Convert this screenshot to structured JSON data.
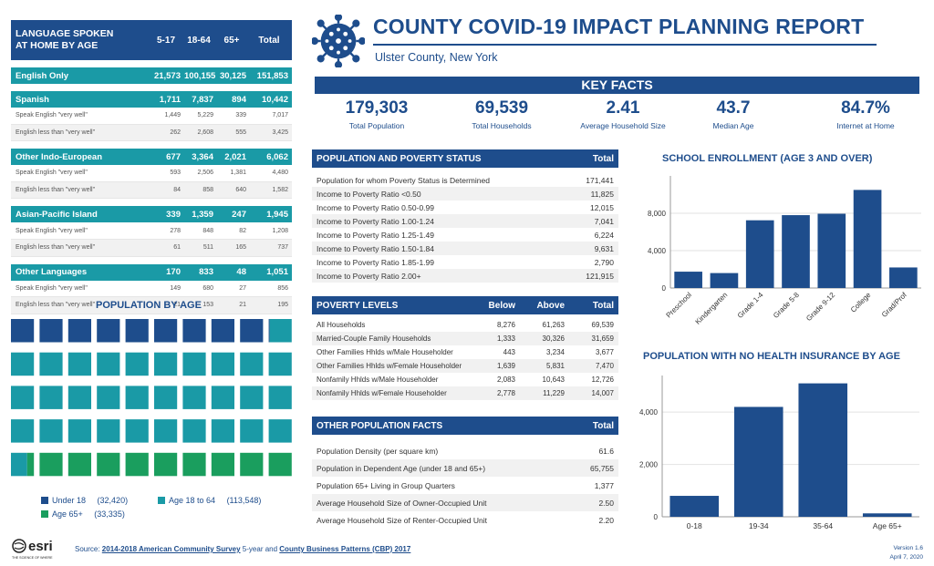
{
  "language": {
    "header": {
      "label_line1": "LANGUAGE SPOKEN",
      "label_line2": "AT HOME BY AGE",
      "col1": "5-17",
      "col2": "18-64",
      "col3": "65+",
      "col4": "Total"
    },
    "english_only": {
      "label": "English Only",
      "v1": "21,573",
      "v2": "100,155",
      "v3": "30,125",
      "v4": "151,853"
    },
    "groups": [
      {
        "label": "Spanish",
        "v1": "1,711",
        "v2": "7,837",
        "v3": "894",
        "v4": "10,442",
        "subs": [
          {
            "label": "Speak English \"very well\"",
            "v1": "1,449",
            "v2": "5,229",
            "v3": "339",
            "v4": "7,017"
          },
          {
            "label": "English less than \"very well\"",
            "v1": "262",
            "v2": "2,608",
            "v3": "555",
            "v4": "3,425"
          }
        ]
      },
      {
        "label": "Other Indo-European",
        "v1": "677",
        "v2": "3,364",
        "v3": "2,021",
        "v4": "6,062",
        "subs": [
          {
            "label": "Speak English \"very well\"",
            "v1": "593",
            "v2": "2,506",
            "v3": "1,381",
            "v4": "4,480"
          },
          {
            "label": "English less than \"very well\"",
            "v1": "84",
            "v2": "858",
            "v3": "640",
            "v4": "1,582"
          }
        ]
      },
      {
        "label": "Asian-Pacific Island",
        "v1": "339",
        "v2": "1,359",
        "v3": "247",
        "v4": "1,945",
        "subs": [
          {
            "label": "Speak English \"very well\"",
            "v1": "278",
            "v2": "848",
            "v3": "82",
            "v4": "1,208"
          },
          {
            "label": "English less than \"very well\"",
            "v1": "61",
            "v2": "511",
            "v3": "165",
            "v4": "737"
          }
        ]
      },
      {
        "label": "Other Languages",
        "v1": "170",
        "v2": "833",
        "v3": "48",
        "v4": "1,051",
        "subs": [
          {
            "label": "Speak English \"very well\"",
            "v1": "149",
            "v2": "680",
            "v3": "27",
            "v4": "856"
          },
          {
            "label": "English less than \"very well\"",
            "v1": "21",
            "v2": "153",
            "v3": "21",
            "v4": "195"
          }
        ]
      }
    ]
  },
  "header": {
    "title": "COUNTY COVID-19 IMPACT PLANNING REPORT",
    "subtitle": "Ulster County,  New York"
  },
  "key_facts": {
    "label": "KEY FACTS",
    "items": [
      {
        "value": "179,303",
        "label": "Total Population"
      },
      {
        "value": "69,539",
        "label": "Total Households"
      },
      {
        "value": "2.41",
        "label": "Average Household Size"
      },
      {
        "value": "43.7",
        "label": "Median Age"
      },
      {
        "value": "84.7%",
        "label": "Internet at Home"
      }
    ]
  },
  "poverty_status": {
    "title": "POPULATION AND POVERTY STATUS",
    "col": "Total",
    "rows": [
      {
        "label": "Population for whom Poverty Status is Determined",
        "value": "171,441"
      },
      {
        "label": "Income to Poverty Ratio <0.50",
        "value": "11,825"
      },
      {
        "label": "Income to Poverty Ratio 0.50-0.99",
        "value": "12,015"
      },
      {
        "label": "Income to Poverty Ratio 1.00-1.24",
        "value": "7,041"
      },
      {
        "label": "Income to Poverty Ratio 1.25-1.49",
        "value": "6,224"
      },
      {
        "label": "Income to Poverty Ratio 1.50-1.84",
        "value": "9,631"
      },
      {
        "label": "Income to Poverty Ratio 1.85-1.99",
        "value": "2,790"
      },
      {
        "label": "Income to Poverty Ratio 2.00+",
        "value": "121,915"
      }
    ]
  },
  "poverty_levels": {
    "title": "POVERTY LEVELS",
    "col1": "Below",
    "col2": "Above",
    "col3": "Total",
    "rows": [
      {
        "label": "All Households",
        "below": "8,276",
        "above": "61,263",
        "total": "69,539"
      },
      {
        "label": "Married-Couple Family Households",
        "below": "1,333",
        "above": "30,326",
        "total": "31,659"
      },
      {
        "label": "Other Families Hhlds w/Male Householder",
        "below": "443",
        "above": "3,234",
        "total": "3,677"
      },
      {
        "label": "Other Families Hhlds w/Female Householder",
        "below": "1,639",
        "above": "5,831",
        "total": "7,470"
      },
      {
        "label": "Nonfamily Hhlds w/Male Householder",
        "below": "2,083",
        "above": "10,643",
        "total": "12,726"
      },
      {
        "label": "Nonfamily Hhlds w/Female Householder",
        "below": "2,778",
        "above": "11,229",
        "total": "14,007"
      }
    ]
  },
  "other_facts": {
    "title": "OTHER POPULATION FACTS",
    "col": "Total",
    "rows": [
      {
        "label": "Population Density (per square km)",
        "value": "61.6"
      },
      {
        "label": "Population in Dependent Age (under 18 and 65+)",
        "value": "65,755"
      },
      {
        "label": "Population 65+ Living in Group Quarters",
        "value": "1,377"
      },
      {
        "label": "Average Household Size of Owner-Occupied Unit",
        "value": "2.50"
      },
      {
        "label": "Average Household Size of Renter-Occupied Unit",
        "value": "2.20"
      }
    ]
  },
  "population_by_age": {
    "title": "POPULATION BY AGE",
    "legend": [
      {
        "label": "Under 18",
        "value": "(32,420)",
        "color": "#1e4d8c"
      },
      {
        "label": "Age 18 to 64",
        "value": "(113,548)",
        "color": "#1a9aa6"
      },
      {
        "label": "Age 65+",
        "value": "(33,335)",
        "color": "#1a9e5e"
      }
    ]
  },
  "chart_data": [
    {
      "type": "bar",
      "title": "SCHOOL ENROLLMENT (AGE 3 AND OVER)",
      "categories": [
        "Preschool",
        "Kindergarten",
        "Grade 1-4",
        "Grade 5-8",
        "Grade 9-12",
        "College",
        "Grad/Prof"
      ],
      "values": [
        1750,
        1600,
        7250,
        7800,
        7950,
        10500,
        2200
      ],
      "ylim": [
        0,
        12000
      ],
      "yticks": [
        "0",
        "4,000",
        "8,000"
      ],
      "ytick_values": [
        0,
        4000,
        8000
      ],
      "color": "#1e4d8c"
    },
    {
      "type": "bar",
      "title": "POPULATION WITH  NO HEALTH INSURANCE BY AGE",
      "categories": [
        "0-18",
        "19-34",
        "35-64",
        "Age 65+"
      ],
      "values": [
        800,
        4200,
        5100,
        130
      ],
      "ylim": [
        0,
        5400
      ],
      "yticks": [
        "0",
        "2,000",
        "4,000"
      ],
      "ytick_values": [
        0,
        2000,
        4000
      ],
      "color": "#1e4d8c"
    }
  ],
  "footer": {
    "source_prefix": "Source: ",
    "source_link1": "2014-2018 American Community Survey",
    "source_mid": " 5-year and ",
    "source_link2": "County Business Patterns (CBP) 2017",
    "version": "Version 1.6",
    "date": "April 7, 2020",
    "esri": "esri",
    "esri_tag": "THE SCIENCE OF WHERE"
  }
}
